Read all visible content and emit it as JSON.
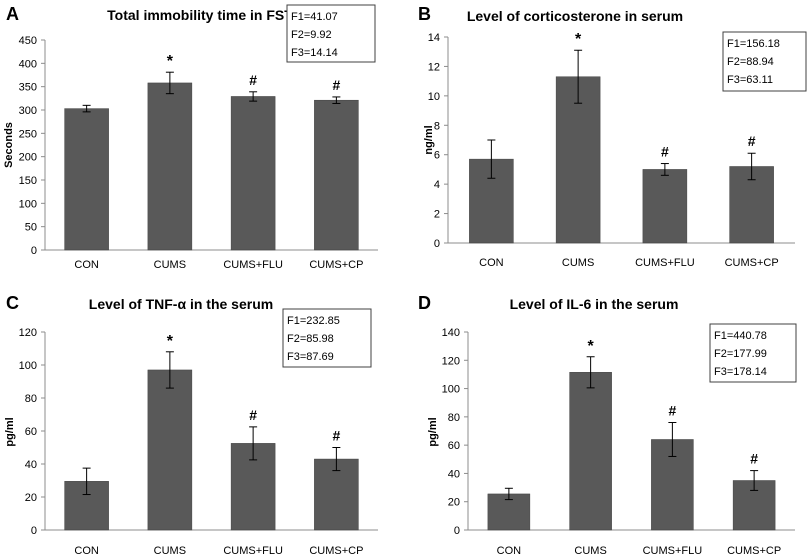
{
  "chart_data": [
    {
      "panel": "A",
      "type": "bar",
      "title": "Total immobility time in FST",
      "xlabel": "",
      "ylabel": "Seconds",
      "categories": [
        "CON",
        "CUMS",
        "CUMS+FLU",
        "CUMS+CP"
      ],
      "values": [
        303,
        358,
        329,
        321
      ],
      "errors": [
        7,
        23,
        10,
        7
      ],
      "annotations": [
        "",
        "*",
        "#",
        "#"
      ],
      "ylim": [
        0,
        450
      ],
      "yticks": [
        0,
        50,
        100,
        150,
        200,
        250,
        300,
        350,
        400,
        450
      ],
      "stats": [
        "F1=41.07",
        "F2=9.92",
        "F3=14.14"
      ],
      "bar_color": "#595959"
    },
    {
      "panel": "B",
      "type": "bar",
      "title": "Level of corticosterone  in serum",
      "xlabel": "",
      "ylabel": "ng/ml",
      "categories": [
        "CON",
        "CUMS",
        "CUMS+FLU",
        "CUMS+CP"
      ],
      "values": [
        5.7,
        11.3,
        5.0,
        5.2
      ],
      "errors": [
        1.3,
        1.8,
        0.4,
        0.9
      ],
      "annotations": [
        "",
        "*",
        "#",
        "#"
      ],
      "ylim": [
        0,
        14
      ],
      "yticks": [
        0,
        2,
        4,
        6,
        8,
        10,
        12,
        14
      ],
      "stats": [
        "F1=156.18",
        "F2=88.94",
        "F3=63.11"
      ],
      "bar_color": "#595959"
    },
    {
      "panel": "C",
      "type": "bar",
      "title": "Level of TNF-α  in the serum",
      "xlabel": "",
      "ylabel": "pg/ml",
      "categories": [
        "CON",
        "CUMS",
        "CUMS+FLU",
        "CUMS+CP"
      ],
      "values": [
        29.5,
        97,
        52.5,
        43
      ],
      "errors": [
        8,
        11,
        10,
        7
      ],
      "annotations": [
        "",
        "*",
        "#",
        "#"
      ],
      "ylim": [
        0,
        120
      ],
      "yticks": [
        0,
        20,
        40,
        60,
        80,
        100,
        120
      ],
      "stats": [
        "F1=232.85",
        "F2=85.98",
        "F3=87.69"
      ],
      "bar_color": "#595959"
    },
    {
      "panel": "D",
      "type": "bar",
      "title": "Level of IL-6 in the serum",
      "xlabel": "",
      "ylabel": "pg/ml",
      "categories": [
        "CON",
        "CUMS",
        "CUMS+FLU",
        "CUMS+CP"
      ],
      "values": [
        25.5,
        111.5,
        64,
        35
      ],
      "errors": [
        4,
        11,
        12,
        7
      ],
      "annotations": [
        "",
        "*",
        "#",
        "#"
      ],
      "ylim": [
        0,
        140
      ],
      "yticks": [
        0,
        20,
        40,
        60,
        80,
        100,
        120,
        140
      ],
      "stats": [
        "F1=440.78",
        "F2=177.99",
        "F3=178.14"
      ],
      "bar_color": "#595959"
    }
  ]
}
